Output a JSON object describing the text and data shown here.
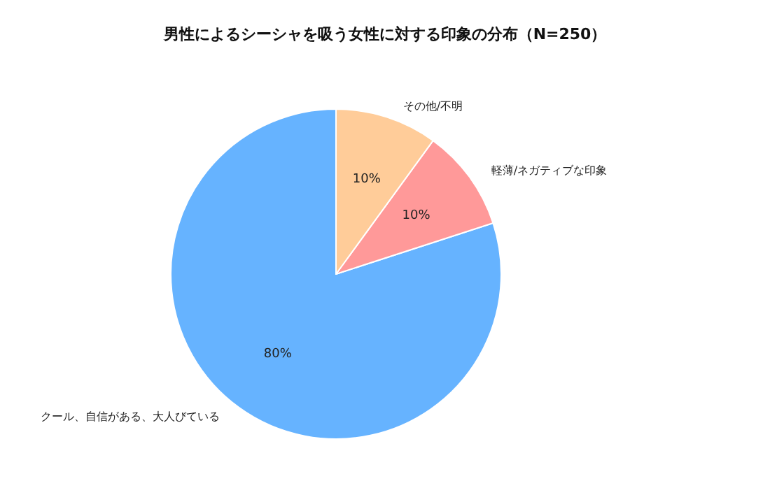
{
  "chart_data": {
    "type": "pie",
    "title": "男性によるシーシャを吸う女性に対する印象の分布（N=250）",
    "categories": [
      "クール、自信がある、大人びている",
      "軽薄/ネガティブな印象",
      "その他/不明"
    ],
    "values": [
      80,
      10,
      10
    ],
    "colors": [
      "#66b3ff",
      "#ff9999",
      "#ffcc99"
    ],
    "value_labels": [
      "80%",
      "10%",
      "10%"
    ],
    "legend": false
  }
}
